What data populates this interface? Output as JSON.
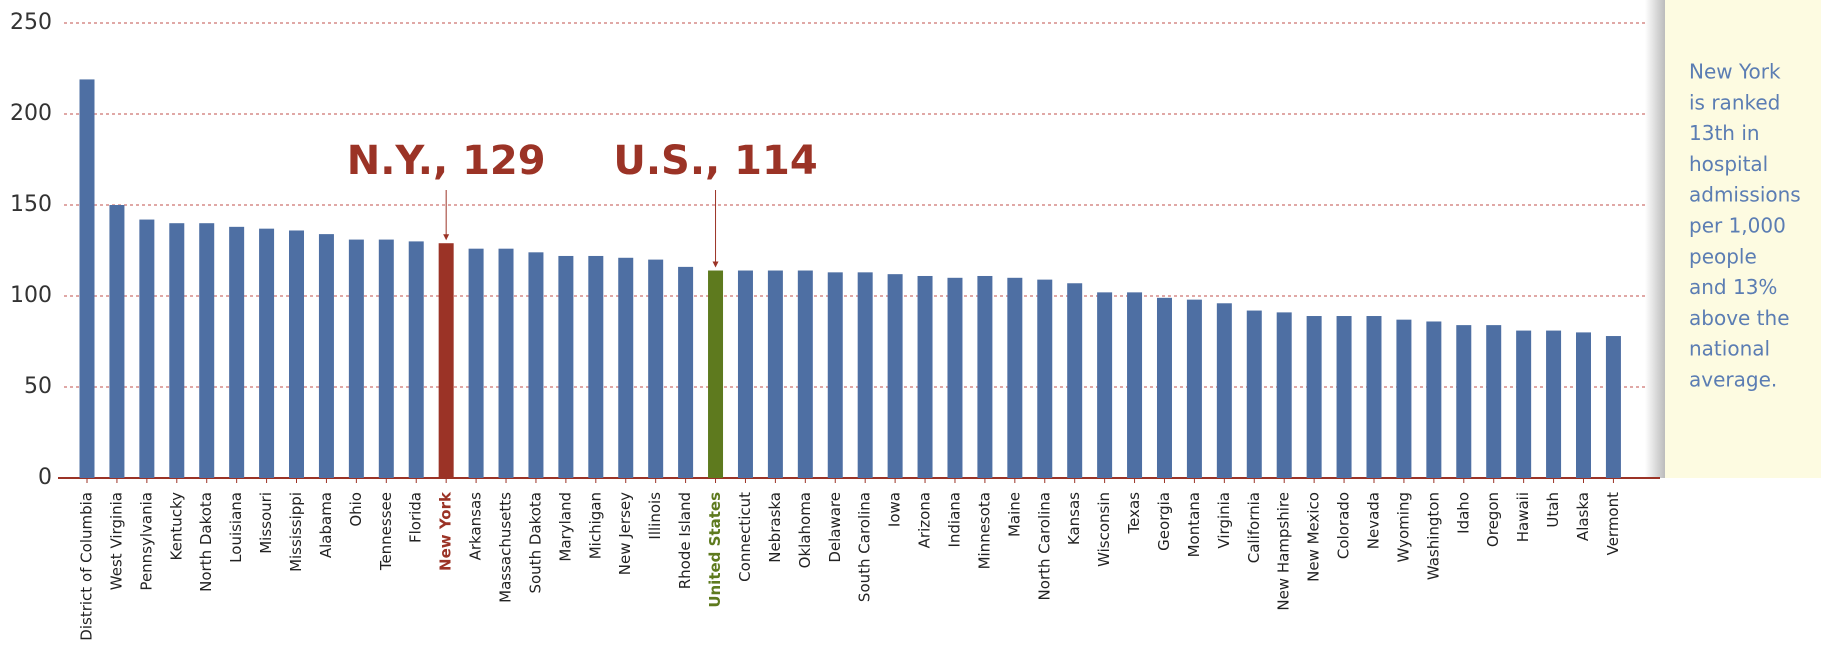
{
  "chart_data": {
    "type": "bar",
    "categories": [
      "District of Columbia",
      "West Virginia",
      "Pennsylvania",
      "Kentucky",
      "North Dakota",
      "Louisiana",
      "Missouri",
      "Mississippi",
      "Alabama",
      "Ohio",
      "Tennessee",
      "Florida",
      "New York",
      "Arkansas",
      "Massachusetts",
      "South Dakota",
      "Maryland",
      "Michigan",
      "New Jersey",
      "Illinois",
      "Rhode Island",
      "United States",
      "Connecticut",
      "Nebraska",
      "Oklahoma",
      "Delaware",
      "South Carolina",
      "Iowa",
      "Arizona",
      "Indiana",
      "Minnesota",
      "Maine",
      "North Carolina",
      "Kansas",
      "Wisconsin",
      "Texas",
      "Georgia",
      "Montana",
      "Virginia",
      "California",
      "New Hampshire",
      "New Mexico",
      "Colorado",
      "Nevada",
      "Wyoming",
      "Washington",
      "Idaho",
      "Oregon",
      "Hawaii",
      "Utah",
      "Alaska",
      "Vermont"
    ],
    "values": [
      219,
      150,
      142,
      140,
      140,
      138,
      137,
      136,
      134,
      131,
      131,
      130,
      129,
      126,
      126,
      124,
      122,
      122,
      121,
      120,
      116,
      114,
      114,
      114,
      114,
      113,
      113,
      112,
      111,
      110,
      111,
      110,
      109,
      107,
      102,
      102,
      99,
      98,
      96,
      92,
      91,
      89,
      89,
      89,
      87,
      86,
      84,
      84,
      81,
      81,
      80,
      78
    ],
    "color": "#4e6fa3",
    "highlights": [
      {
        "category": "New York",
        "color": "#9b3326"
      },
      {
        "category": "United States",
        "color": "#5e7a1e"
      }
    ],
    "ylim": [
      0,
      250
    ],
    "yticks": [
      0,
      50,
      100,
      150,
      200,
      250
    ],
    "grid": true,
    "annotations": [
      {
        "text": "N.Y., 129",
        "target": "New York"
      },
      {
        "text": "U.S., 114",
        "target": "United States"
      }
    ],
    "note": [
      "New York",
      "is ranked",
      "13th in",
      "hospital",
      "admissions",
      "per 1,000",
      "people",
      "and 13%",
      "above the",
      "national",
      "average."
    ]
  }
}
